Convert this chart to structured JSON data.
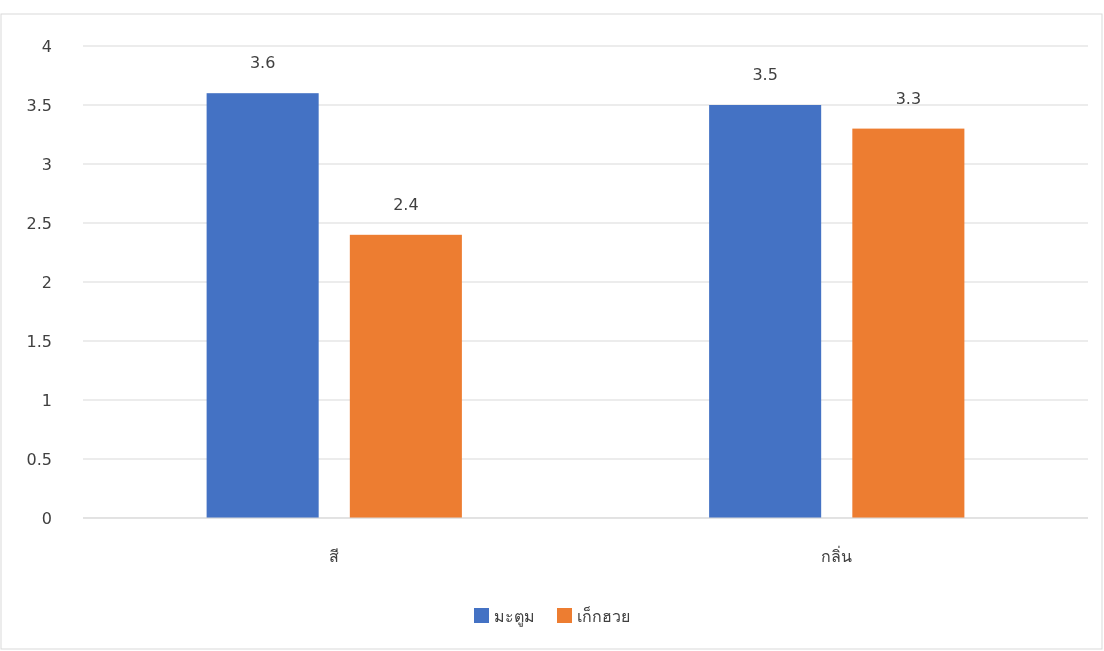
{
  "chart_data": {
    "type": "bar",
    "categories": [
      "สี",
      "กลิ่น"
    ],
    "series": [
      {
        "name": "มะตูม",
        "color": "#4472c4",
        "values": [
          3.6,
          3.5
        ]
      },
      {
        "name": "เก็กฮวย",
        "color": "#ed7d31",
        "values": [
          2.4,
          3.3
        ]
      }
    ],
    "ylim": [
      0,
      4
    ],
    "yticks": [
      0,
      0.5,
      1,
      1.5,
      2,
      2.5,
      3,
      3.5,
      4
    ],
    "grid": "y",
    "data_labels": true,
    "legend": "bottom"
  }
}
